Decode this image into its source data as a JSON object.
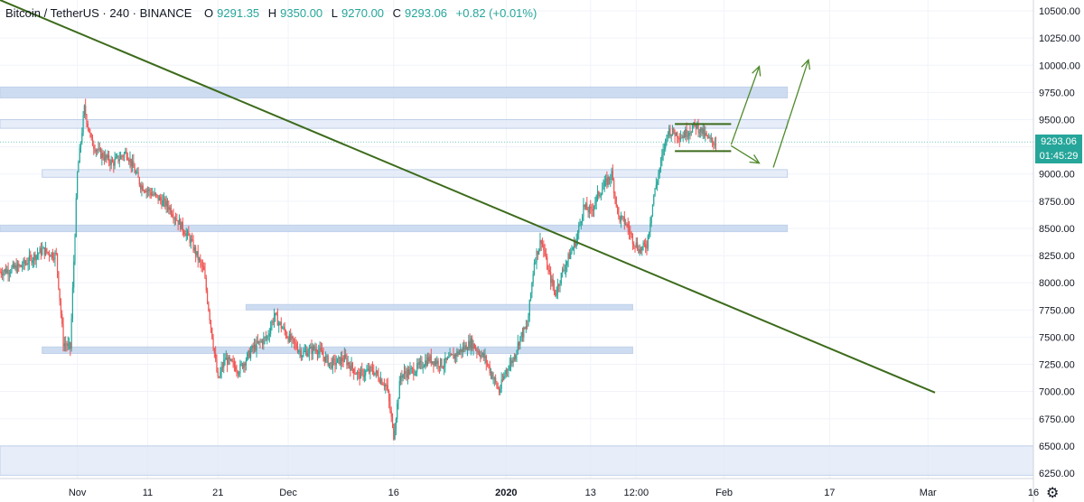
{
  "legend": {
    "title": "Bitcoin / TetherUS · 240 · BINANCE",
    "open_label": "O",
    "open": "9291.35",
    "high_label": "H",
    "high": "9350.00",
    "low_label": "L",
    "low": "9270.00",
    "close_label": "C",
    "close": "9293.06",
    "change": "+0.82 (+0.01%)"
  },
  "price_badge": {
    "price": "9293.06",
    "countdown": "01:45:29"
  },
  "colors": {
    "up": "#26a69a",
    "down": "#ef5350",
    "trendline": "#3d6b1c",
    "zone_fill": "#c6d7ef",
    "zone_light": "#e3ebf8",
    "grid": "#f0f3fa",
    "axis_text": "#131722",
    "badge": "#26a69a"
  },
  "chart_data": {
    "type": "candlestick",
    "symbol": "Bitcoin / TetherUS",
    "interval": "240",
    "exchange": "BINANCE",
    "ylim": [
      6200,
      10600
    ],
    "y_ticks": [
      6250,
      6500,
      6750,
      7000,
      7250,
      7500,
      7750,
      8000,
      8250,
      8500,
      8750,
      9000,
      9250,
      9500,
      9750,
      10000,
      10250,
      10500
    ],
    "y_tick_labels": [
      "6250.00",
      "6500.00",
      "6750.00",
      "7000.00",
      "7250.00",
      "7500.00",
      "7750.00",
      "8000.00",
      "8250.00",
      "8500.00",
      "8750.00",
      "9000.00",
      "9250.00",
      "9500.00",
      "9750.00",
      "10000.00",
      "10250.00",
      "10500.00"
    ],
    "x_range_days": [
      -11,
      136
    ],
    "x_ticks": [
      {
        "label": "Nov",
        "day": 0
      },
      {
        "label": "11",
        "day": 10
      },
      {
        "label": "21",
        "day": 20
      },
      {
        "label": "Dec",
        "day": 30
      },
      {
        "label": "16",
        "day": 45
      },
      {
        "label": "2020",
        "day": 61
      },
      {
        "label": "13",
        "day": 73
      },
      {
        "label": "12:00",
        "day": 79.5
      },
      {
        "label": "Feb",
        "day": 92
      },
      {
        "label": "17",
        "day": 107
      },
      {
        "label": "Mar",
        "day": 121
      },
      {
        "label": "16",
        "day": 136
      }
    ],
    "price_path": [
      [
        -11,
        8100
      ],
      [
        -8,
        8150
      ],
      [
        -5,
        8300
      ],
      [
        -3,
        8250
      ],
      [
        -2,
        7450
      ],
      [
        -1,
        7400
      ],
      [
        0,
        9000
      ],
      [
        1,
        9600
      ],
      [
        2,
        9300
      ],
      [
        3,
        9200
      ],
      [
        5,
        9100
      ],
      [
        7,
        9200
      ],
      [
        9,
        8900
      ],
      [
        11,
        8800
      ],
      [
        13,
        8700
      ],
      [
        14,
        8600
      ],
      [
        16,
        8400
      ],
      [
        18,
        8100
      ],
      [
        19,
        7600
      ],
      [
        20,
        7100
      ],
      [
        21,
        7300
      ],
      [
        23,
        7200
      ],
      [
        25,
        7400
      ],
      [
        27,
        7500
      ],
      [
        28,
        7700
      ],
      [
        30,
        7500
      ],
      [
        32,
        7350
      ],
      [
        34,
        7400
      ],
      [
        36,
        7250
      ],
      [
        38,
        7300
      ],
      [
        40,
        7150
      ],
      [
        42,
        7200
      ],
      [
        44,
        7050
      ],
      [
        45,
        6600
      ],
      [
        46,
        7150
      ],
      [
        48,
        7200
      ],
      [
        50,
        7300
      ],
      [
        52,
        7250
      ],
      [
        54,
        7350
      ],
      [
        56,
        7450
      ],
      [
        58,
        7300
      ],
      [
        60,
        7000
      ],
      [
        61,
        7200
      ],
      [
        62,
        7300
      ],
      [
        63,
        7500
      ],
      [
        64,
        7600
      ],
      [
        65,
        8200
      ],
      [
        66,
        8400
      ],
      [
        67,
        8100
      ],
      [
        68,
        7900
      ],
      [
        69,
        8100
      ],
      [
        70,
        8250
      ],
      [
        71,
        8400
      ],
      [
        72,
        8700
      ],
      [
        73,
        8650
      ],
      [
        74,
        8800
      ],
      [
        75,
        8900
      ],
      [
        76,
        9000
      ],
      [
        77,
        8600
      ],
      [
        78,
        8550
      ],
      [
        79,
        8400
      ],
      [
        80,
        8300
      ],
      [
        81,
        8350
      ],
      [
        82,
        8800
      ],
      [
        83,
        9100
      ],
      [
        84,
        9400
      ],
      [
        86,
        9350
      ],
      [
        88,
        9450
      ],
      [
        90,
        9300
      ],
      [
        91,
        9293
      ]
    ],
    "zones": [
      {
        "low": 9700,
        "high": 9800,
        "from_day": -11,
        "to_day": 101
      },
      {
        "low": 9420,
        "high": 9500,
        "from_day": -11,
        "to_day": 101
      },
      {
        "low": 8970,
        "high": 9040,
        "from_day": -5,
        "to_day": 101
      },
      {
        "low": 8470,
        "high": 8530,
        "from_day": -11,
        "to_day": 101
      },
      {
        "low": 7750,
        "high": 7800,
        "from_day": 24,
        "to_day": 79
      },
      {
        "low": 7350,
        "high": 7410,
        "from_day": -5,
        "to_day": 79
      },
      {
        "low": 6230,
        "high": 6500,
        "from_day": -11,
        "to_day": 136
      }
    ],
    "trendline": {
      "start": [
        -11,
        10600
      ],
      "end": [
        122,
        6990
      ]
    },
    "range_box": {
      "top": 9460,
      "bottom": 9210,
      "from_day": 85,
      "to_day": 93
    },
    "arrows": [
      {
        "from": [
          93,
          9270
        ],
        "to": [
          97,
          9990
        ]
      },
      {
        "from": [
          93,
          9260
        ],
        "to": [
          97,
          9100
        ]
      },
      {
        "from": [
          99,
          9060
        ],
        "to": [
          104,
          10050
        ]
      }
    ],
    "current_price": 9293.06
  }
}
